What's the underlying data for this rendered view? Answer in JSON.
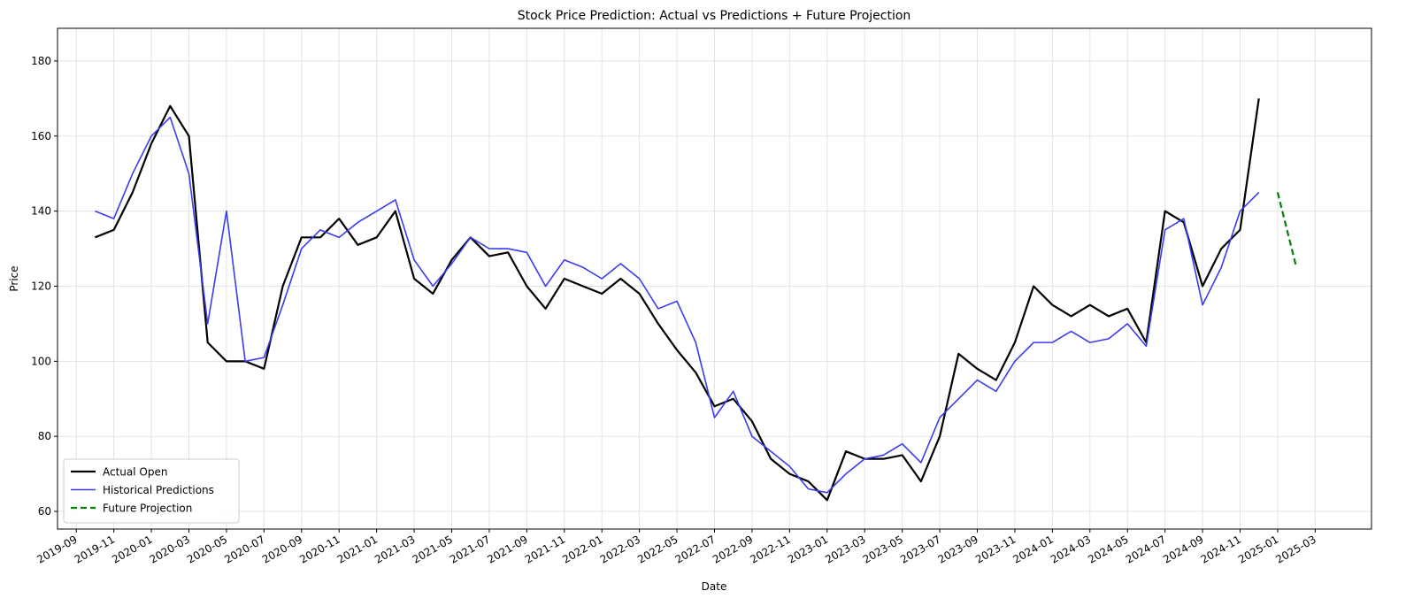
{
  "chart_data": {
    "type": "line",
    "title": "Stock Price Prediction: Actual vs Predictions + Future Projection",
    "x_label": "Date",
    "y_label": "Price",
    "xlim": [
      "2019-08",
      "2025-06"
    ],
    "xticks": [
      "2019-09",
      "2019-11",
      "2020-01",
      "2020-03",
      "2020-05",
      "2020-07",
      "2020-09",
      "2020-11",
      "2021-01",
      "2021-03",
      "2021-05",
      "2021-07",
      "2021-09",
      "2021-11",
      "2022-01",
      "2022-03",
      "2022-05",
      "2022-07",
      "2022-09",
      "2022-11",
      "2023-01",
      "2023-03",
      "2023-05",
      "2023-07",
      "2023-09",
      "2023-11",
      "2024-01",
      "2024-03",
      "2024-05",
      "2024-07",
      "2024-09",
      "2024-11",
      "2025-01",
      "2025-03"
    ],
    "ylim": [
      55.3,
      188.7
    ],
    "yticks": [
      60,
      80,
      100,
      120,
      140,
      160,
      180
    ],
    "grid": true,
    "legend": "lower left",
    "series": [
      {
        "name": "Actual Open",
        "color": "#000000",
        "width": 2.2,
        "dash": "solid",
        "x": [
          "2019-10",
          "2019-11",
          "2019-12",
          "2020-01",
          "2020-02",
          "2020-03",
          "2020-04",
          "2020-05",
          "2020-06",
          "2020-07",
          "2020-08",
          "2020-09",
          "2020-10",
          "2020-11",
          "2020-12",
          "2021-01",
          "2021-02",
          "2021-03",
          "2021-04",
          "2021-05",
          "2021-06",
          "2021-07",
          "2021-08",
          "2021-09",
          "2021-10",
          "2021-11",
          "2021-12",
          "2022-01",
          "2022-02",
          "2022-03",
          "2022-04",
          "2022-05",
          "2022-06",
          "2022-07",
          "2022-08",
          "2022-09",
          "2022-10",
          "2022-11",
          "2022-12",
          "2023-01",
          "2023-02",
          "2023-03",
          "2023-04",
          "2023-05",
          "2023-06",
          "2023-07",
          "2023-08",
          "2023-09",
          "2023-10",
          "2023-11",
          "2023-12",
          "2024-01",
          "2024-02",
          "2024-03",
          "2024-04",
          "2024-05",
          "2024-06",
          "2024-07",
          "2024-08",
          "2024-09",
          "2024-10",
          "2024-11",
          "2024-12"
        ],
        "values": [
          133,
          135,
          145,
          158,
          168,
          160,
          105,
          100,
          100,
          98,
          120,
          133,
          133,
          138,
          131,
          133,
          140,
          122,
          118,
          127,
          133,
          128,
          129,
          120,
          114,
          122,
          120,
          118,
          122,
          118,
          110,
          103,
          97,
          88,
          90,
          84,
          74,
          70,
          68,
          63,
          76,
          74,
          74,
          75,
          68,
          80,
          102,
          98,
          95,
          105,
          120,
          115,
          112,
          115,
          112,
          114,
          105,
          140,
          137,
          120,
          130,
          135,
          170
        ]
      },
      {
        "name": "Historical Predictions",
        "color": "#3b3bf0",
        "width": 1.6,
        "dash": "solid",
        "x": [
          "2019-10",
          "2019-11",
          "2019-12",
          "2020-01",
          "2020-02",
          "2020-03",
          "2020-04",
          "2020-05",
          "2020-06",
          "2020-07",
          "2020-08",
          "2020-09",
          "2020-10",
          "2020-11",
          "2020-12",
          "2021-01",
          "2021-02",
          "2021-03",
          "2021-04",
          "2021-05",
          "2021-06",
          "2021-07",
          "2021-08",
          "2021-09",
          "2021-10",
          "2021-11",
          "2021-12",
          "2022-01",
          "2022-02",
          "2022-03",
          "2022-04",
          "2022-05",
          "2022-06",
          "2022-07",
          "2022-08",
          "2022-09",
          "2022-10",
          "2022-11",
          "2022-12",
          "2023-01",
          "2023-02",
          "2023-03",
          "2023-04",
          "2023-05",
          "2023-06",
          "2023-07",
          "2023-08",
          "2023-09",
          "2023-10",
          "2023-11",
          "2023-12",
          "2024-01",
          "2024-02",
          "2024-03",
          "2024-04",
          "2024-05",
          "2024-06",
          "2024-07",
          "2024-08",
          "2024-09",
          "2024-10",
          "2024-11",
          "2024-12"
        ],
        "values": [
          140,
          138,
          150,
          160,
          165,
          150,
          110,
          140,
          100,
          101,
          115,
          130,
          135,
          133,
          137,
          140,
          143,
          127,
          120,
          126,
          133,
          130,
          130,
          129,
          120,
          127,
          125,
          122,
          126,
          122,
          114,
          116,
          105,
          85,
          92,
          80,
          76,
          72,
          66,
          65,
          70,
          74,
          75,
          78,
          73,
          85,
          90,
          95,
          92,
          100,
          105,
          105,
          108,
          105,
          106,
          110,
          104,
          135,
          138,
          115,
          125,
          140,
          145
        ]
      },
      {
        "name": "Future Projection",
        "color": "#008000",
        "width": 2.2,
        "dash": "dashed",
        "x": [
          "2025-01",
          "2025-02"
        ],
        "values": [
          145,
          125
        ]
      }
    ]
  }
}
